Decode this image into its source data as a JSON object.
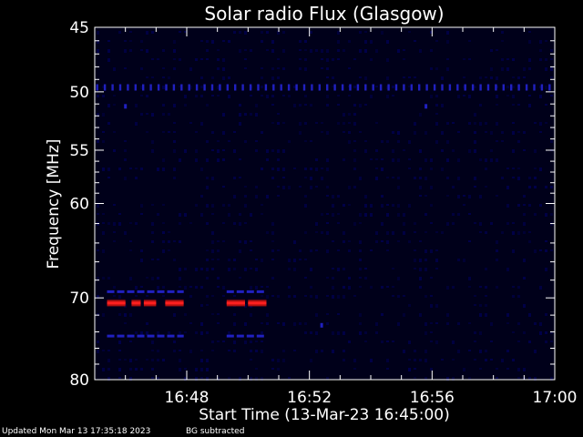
{
  "chart_data": {
    "type": "heatmap",
    "title": "Solar radio Flux (Glasgow)",
    "xlabel": "Start Time (13-Mar-23 16:45:00)",
    "ylabel": "Frequency [MHz]",
    "x_range_minutes": [
      "16:45",
      "17:00"
    ],
    "x_ticks": [
      "16:48",
      "16:52",
      "16:56",
      "17:00"
    ],
    "y_ticks": [
      45,
      50,
      55,
      60,
      70,
      80
    ],
    "y_range": [
      45,
      80
    ],
    "y_scale": "log",
    "y_direction": "inverted",
    "background_color": "#00001a",
    "colors": {
      "strong": "#ff2020",
      "weak": "#2020c0",
      "faint": "#00004a"
    },
    "features": [
      {
        "type": "band_bursts",
        "frequency_mhz": 49.6,
        "level": "weak",
        "from": "16:45",
        "to": "17:00",
        "pattern": "periodic"
      },
      {
        "type": "point",
        "frequency_mhz": 51.2,
        "time": "16:46",
        "level": "weak"
      },
      {
        "type": "point",
        "frequency_mhz": 51.2,
        "time": "16:55.8",
        "level": "weak"
      },
      {
        "type": "burst",
        "frequency_mhz": 70.6,
        "level": "strong",
        "from": "16:45.4",
        "to": "16:46.0"
      },
      {
        "type": "burst",
        "frequency_mhz": 70.6,
        "level": "strong",
        "from": "16:46.2",
        "to": "16:46.5"
      },
      {
        "type": "burst",
        "frequency_mhz": 70.6,
        "level": "strong",
        "from": "16:46.6",
        "to": "16:47.0"
      },
      {
        "type": "burst",
        "frequency_mhz": 70.6,
        "level": "strong",
        "from": "16:47.3",
        "to": "16:47.9"
      },
      {
        "type": "burst",
        "frequency_mhz": 70.6,
        "level": "strong",
        "from": "16:49.3",
        "to": "16:49.9"
      },
      {
        "type": "burst",
        "frequency_mhz": 70.6,
        "level": "strong",
        "from": "16:50.0",
        "to": "16:50.6"
      },
      {
        "type": "burst",
        "frequency_mhz": 69.3,
        "level": "weak",
        "from": "16:45.4",
        "to": "16:47.9"
      },
      {
        "type": "burst",
        "frequency_mhz": 69.3,
        "level": "weak",
        "from": "16:49.3",
        "to": "16:50.6"
      },
      {
        "type": "burst",
        "frequency_mhz": 74.5,
        "level": "weak",
        "from": "16:45.4",
        "to": "16:47.9"
      },
      {
        "type": "burst",
        "frequency_mhz": 74.5,
        "level": "weak",
        "from": "16:49.3",
        "to": "16:50.6"
      },
      {
        "type": "point",
        "frequency_mhz": 73.2,
        "time": "16:52.4",
        "level": "weak"
      }
    ]
  },
  "footer": {
    "updated": "Updated Mon Mar 13 17:35:18 2023",
    "note": "BG subtracted"
  }
}
